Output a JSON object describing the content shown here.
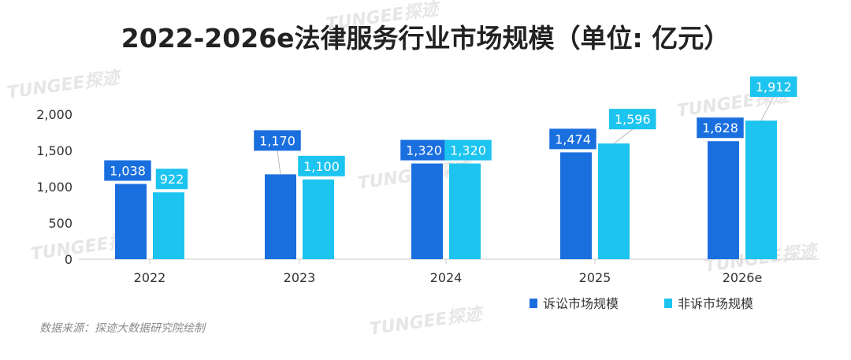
{
  "title": "2022-2026e法律服务行业市场规模（单位: 亿元）",
  "source": "数据来源：探迹大数据研究院绘制",
  "watermark": "TUNGEE探迹",
  "colors": {
    "series1": "#1a6fdf",
    "series2": "#1cc4ef",
    "axis": "#cccccc",
    "text": "#333333"
  },
  "chart_data": {
    "type": "bar",
    "title": "2022-2026e法律服务行业市场规模（单位: 亿元）",
    "categories": [
      "2022",
      "2023",
      "2024",
      "2025",
      "2026e"
    ],
    "series": [
      {
        "name": "诉讼市场规模",
        "values": [
          1038,
          1170,
          1320,
          1474,
          1628
        ],
        "labels": [
          "1,038",
          "1,170",
          "1,320",
          "1,474",
          "1,628"
        ]
      },
      {
        "name": "非诉市场规模",
        "values": [
          922,
          1100,
          1320,
          1596,
          1912
        ],
        "labels": [
          "922",
          "1,100",
          "1,320",
          "1,596",
          "1,912"
        ]
      }
    ],
    "yticks": [
      0,
      500,
      1000,
      1500,
      2000
    ],
    "ytick_labels": [
      "0",
      "500",
      "1,000",
      "1,500",
      "2,000"
    ],
    "ylim": [
      0,
      2000
    ],
    "grid": false,
    "legend": "bottom-right",
    "xlabel": "",
    "ylabel": ""
  }
}
